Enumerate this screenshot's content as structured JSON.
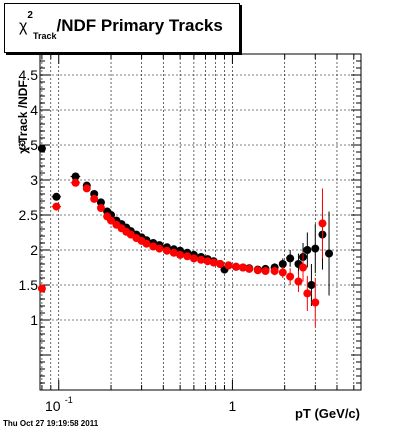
{
  "title": {
    "chi": "χ",
    "sup": "2",
    "sub": "Track",
    "rest": "/NDF  Primary Tracks"
  },
  "ylabel": "χ²Track /NDF",
  "timestamp": "Thu Oct 27 19:19:58 2011",
  "chart_data": {
    "type": "scatter",
    "xlabel": "pT (GeV/c)",
    "xscale": "log",
    "xlim": [
      0.078,
      5.5
    ],
    "ylim": [
      0.0,
      4.8
    ],
    "x_tick_labels": [
      {
        "value": 0.1,
        "base": "10",
        "exp": "-1"
      },
      {
        "value": 1,
        "base": "1",
        "exp": ""
      }
    ],
    "y_ticks": [
      1,
      1.5,
      2,
      2.5,
      3,
      3.5,
      4,
      4.5
    ],
    "y_tick_labels": [
      "1",
      "1.5",
      "2",
      "2.5",
      "3",
      "3.5",
      "4",
      "4.5"
    ],
    "grid": true,
    "series": [
      {
        "color": "#000000",
        "points": [
          {
            "x": 0.08,
            "y": 3.45,
            "xerr": 0.004,
            "yerr": 0.02
          },
          {
            "x": 0.097,
            "y": 2.76,
            "xerr": 0.006,
            "yerr": 0.02
          },
          {
            "x": 0.125,
            "y": 3.05,
            "xerr": 0.008,
            "yerr": 0.02
          },
          {
            "x": 0.145,
            "y": 2.92,
            "yerr": 0.02
          },
          {
            "x": 0.16,
            "y": 2.8,
            "yerr": 0.02
          },
          {
            "x": 0.175,
            "y": 2.68,
            "yerr": 0.02
          },
          {
            "x": 0.19,
            "y": 2.55,
            "yerr": 0.02
          },
          {
            "x": 0.2,
            "y": 2.5,
            "yerr": 0.02
          },
          {
            "x": 0.215,
            "y": 2.42,
            "yerr": 0.02
          },
          {
            "x": 0.23,
            "y": 2.37,
            "yerr": 0.02
          },
          {
            "x": 0.245,
            "y": 2.32,
            "yerr": 0.02
          },
          {
            "x": 0.26,
            "y": 2.27,
            "yerr": 0.02
          },
          {
            "x": 0.28,
            "y": 2.22,
            "yerr": 0.02
          },
          {
            "x": 0.3,
            "y": 2.18,
            "yerr": 0.02
          },
          {
            "x": 0.32,
            "y": 2.14,
            "yerr": 0.02
          },
          {
            "x": 0.35,
            "y": 2.1,
            "yerr": 0.02
          },
          {
            "x": 0.38,
            "y": 2.07,
            "yerr": 0.02
          },
          {
            "x": 0.42,
            "y": 2.04,
            "yerr": 0.02
          },
          {
            "x": 0.46,
            "y": 2.01,
            "yerr": 0.02
          },
          {
            "x": 0.5,
            "y": 1.99,
            "yerr": 0.02
          },
          {
            "x": 0.55,
            "y": 1.96,
            "yerr": 0.02
          },
          {
            "x": 0.6,
            "y": 1.93,
            "yerr": 0.02
          },
          {
            "x": 0.66,
            "y": 1.9,
            "yerr": 0.02
          },
          {
            "x": 0.72,
            "y": 1.87,
            "yerr": 0.02
          },
          {
            "x": 0.78,
            "y": 1.84,
            "yerr": 0.02
          },
          {
            "x": 0.85,
            "y": 1.8,
            "yerr": 0.03
          },
          {
            "x": 0.9,
            "y": 1.72,
            "yerr": 0.03
          },
          {
            "x": 0.95,
            "y": 1.78,
            "yerr": 0.03
          },
          {
            "x": 1.05,
            "y": 1.76,
            "yerr": 0.03
          },
          {
            "x": 1.15,
            "y": 1.75,
            "yerr": 0.03
          },
          {
            "x": 1.25,
            "y": 1.74,
            "yerr": 0.03
          },
          {
            "x": 1.4,
            "y": 1.72,
            "yerr": 0.04
          },
          {
            "x": 1.55,
            "y": 1.73,
            "yerr": 0.05
          },
          {
            "x": 1.75,
            "y": 1.75,
            "yerr": 0.06
          },
          {
            "x": 1.95,
            "y": 1.8,
            "yerr": 0.08
          },
          {
            "x": 2.15,
            "y": 1.88,
            "yerr": 0.12
          },
          {
            "x": 2.4,
            "y": 1.8,
            "yerr": 0.15
          },
          {
            "x": 2.55,
            "y": 1.9,
            "yerr": 0.2
          },
          {
            "x": 2.7,
            "y": 2.0,
            "yerr": 0.25
          },
          {
            "x": 2.85,
            "y": 1.5,
            "yerr": 0.3
          },
          {
            "x": 3.0,
            "y": 2.02,
            "yerr": 0.35
          },
          {
            "x": 3.3,
            "y": 2.22,
            "yerr": 0.5
          },
          {
            "x": 3.6,
            "y": 1.95,
            "yerr": 0.6
          }
        ]
      },
      {
        "color": "#ff0000",
        "points": [
          {
            "x": 0.08,
            "y": 1.45,
            "xerr": 0.004,
            "yerr": 0.02
          },
          {
            "x": 0.097,
            "y": 2.62,
            "xerr": 0.006,
            "yerr": 0.02
          },
          {
            "x": 0.125,
            "y": 2.96,
            "xerr": 0.008,
            "yerr": 0.02
          },
          {
            "x": 0.145,
            "y": 2.88,
            "yerr": 0.02
          },
          {
            "x": 0.16,
            "y": 2.73,
            "yerr": 0.02
          },
          {
            "x": 0.175,
            "y": 2.6,
            "yerr": 0.02
          },
          {
            "x": 0.19,
            "y": 2.48,
            "yerr": 0.02
          },
          {
            "x": 0.2,
            "y": 2.42,
            "yerr": 0.02
          },
          {
            "x": 0.215,
            "y": 2.36,
            "yerr": 0.02
          },
          {
            "x": 0.23,
            "y": 2.31,
            "yerr": 0.02
          },
          {
            "x": 0.245,
            "y": 2.26,
            "yerr": 0.02
          },
          {
            "x": 0.26,
            "y": 2.22,
            "yerr": 0.02
          },
          {
            "x": 0.28,
            "y": 2.17,
            "yerr": 0.02
          },
          {
            "x": 0.3,
            "y": 2.13,
            "yerr": 0.02
          },
          {
            "x": 0.32,
            "y": 2.09,
            "yerr": 0.02
          },
          {
            "x": 0.35,
            "y": 2.05,
            "yerr": 0.02
          },
          {
            "x": 0.38,
            "y": 2.02,
            "yerr": 0.02
          },
          {
            "x": 0.42,
            "y": 1.99,
            "yerr": 0.02
          },
          {
            "x": 0.46,
            "y": 1.96,
            "yerr": 0.02
          },
          {
            "x": 0.5,
            "y": 1.93,
            "yerr": 0.02
          },
          {
            "x": 0.55,
            "y": 1.91,
            "yerr": 0.02
          },
          {
            "x": 0.6,
            "y": 1.88,
            "yerr": 0.02
          },
          {
            "x": 0.66,
            "y": 1.86,
            "yerr": 0.02
          },
          {
            "x": 0.72,
            "y": 1.84,
            "yerr": 0.02
          },
          {
            "x": 0.78,
            "y": 1.82,
            "yerr": 0.02
          },
          {
            "x": 0.85,
            "y": 1.8,
            "yerr": 0.03
          },
          {
            "x": 0.95,
            "y": 1.78,
            "yerr": 0.03
          },
          {
            "x": 1.05,
            "y": 1.76,
            "yerr": 0.03
          },
          {
            "x": 1.15,
            "y": 1.75,
            "yerr": 0.03
          },
          {
            "x": 1.25,
            "y": 1.73,
            "yerr": 0.03
          },
          {
            "x": 1.4,
            "y": 1.71,
            "yerr": 0.04
          },
          {
            "x": 1.55,
            "y": 1.7,
            "yerr": 0.05
          },
          {
            "x": 1.75,
            "y": 1.7,
            "yerr": 0.06
          },
          {
            "x": 1.95,
            "y": 1.68,
            "yerr": 0.08
          },
          {
            "x": 2.15,
            "y": 1.62,
            "yerr": 0.12
          },
          {
            "x": 2.4,
            "y": 1.55,
            "yerr": 0.15
          },
          {
            "x": 2.55,
            "y": 1.75,
            "yerr": 0.2
          },
          {
            "x": 2.7,
            "y": 1.38,
            "yerr": 0.25
          },
          {
            "x": 3.0,
            "y": 1.25,
            "yerr": 0.35
          },
          {
            "x": 3.3,
            "y": 2.38,
            "yerr": 0.5
          }
        ]
      }
    ]
  }
}
